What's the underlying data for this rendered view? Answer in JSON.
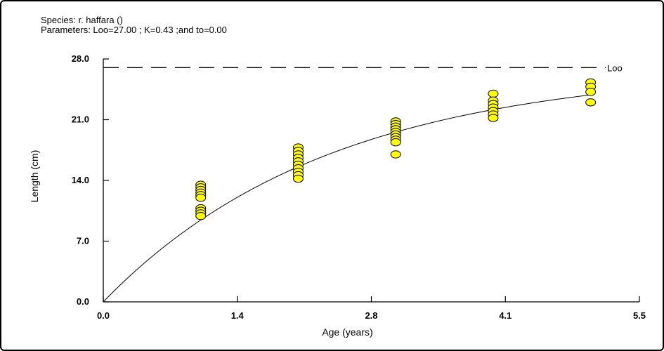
{
  "header": {
    "species": "Species: r. haffara ()",
    "parameters": "Parameters: Loo=27.00 ; K=0.43 ;and to=0.00"
  },
  "chart_data": {
    "type": "scatter",
    "title": "",
    "xlabel": "Age (years)",
    "ylabel": "Length (cm)",
    "xlim": [
      0,
      5.5
    ],
    "ylim": [
      0,
      28
    ],
    "x_ticks": [
      "0.0",
      "1.4",
      "2.8",
      "4.1",
      "5.5"
    ],
    "x_tick_values": [
      0,
      1.375,
      2.75,
      4.125,
      5.5
    ],
    "y_ticks": [
      "0.0",
      "7.0",
      "14.0",
      "21.0",
      "28.0"
    ],
    "y_tick_values": [
      0,
      7,
      14,
      21,
      28
    ],
    "grid": false,
    "asymptote": {
      "y": 27.0,
      "label": "Loo"
    },
    "growth_curve": {
      "Loo": 27.0,
      "K": 0.43,
      "t0": 0.0
    },
    "point_color": "#ffff00",
    "point_edge_color": "#000000",
    "points": [
      {
        "x": 1,
        "y": 13.5
      },
      {
        "x": 1,
        "y": 13.2
      },
      {
        "x": 1,
        "y": 12.9
      },
      {
        "x": 1,
        "y": 12.6
      },
      {
        "x": 1,
        "y": 12.3
      },
      {
        "x": 1,
        "y": 12.0
      },
      {
        "x": 1,
        "y": 10.8
      },
      {
        "x": 1,
        "y": 10.5
      },
      {
        "x": 1,
        "y": 10.2
      },
      {
        "x": 1,
        "y": 9.9
      },
      {
        "x": 2,
        "y": 17.8
      },
      {
        "x": 2,
        "y": 17.4
      },
      {
        "x": 2,
        "y": 17.0
      },
      {
        "x": 2,
        "y": 16.6
      },
      {
        "x": 2,
        "y": 16.2
      },
      {
        "x": 2,
        "y": 15.8
      },
      {
        "x": 2,
        "y": 15.4
      },
      {
        "x": 2,
        "y": 15.0
      },
      {
        "x": 2,
        "y": 14.6
      },
      {
        "x": 2,
        "y": 14.2
      },
      {
        "x": 3,
        "y": 20.8
      },
      {
        "x": 3,
        "y": 20.5
      },
      {
        "x": 3,
        "y": 20.2
      },
      {
        "x": 3,
        "y": 19.9
      },
      {
        "x": 3,
        "y": 19.6
      },
      {
        "x": 3,
        "y": 19.3
      },
      {
        "x": 3,
        "y": 19.0
      },
      {
        "x": 3,
        "y": 18.7
      },
      {
        "x": 3,
        "y": 18.4
      },
      {
        "x": 3,
        "y": 17.0
      },
      {
        "x": 4,
        "y": 24.0
      },
      {
        "x": 4,
        "y": 23.2
      },
      {
        "x": 4,
        "y": 22.8
      },
      {
        "x": 4,
        "y": 22.4
      },
      {
        "x": 4,
        "y": 22.0
      },
      {
        "x": 4,
        "y": 21.6
      },
      {
        "x": 4,
        "y": 21.2
      },
      {
        "x": 5,
        "y": 25.3
      },
      {
        "x": 5,
        "y": 24.8
      },
      {
        "x": 5,
        "y": 24.2
      },
      {
        "x": 5,
        "y": 23.0
      }
    ]
  }
}
